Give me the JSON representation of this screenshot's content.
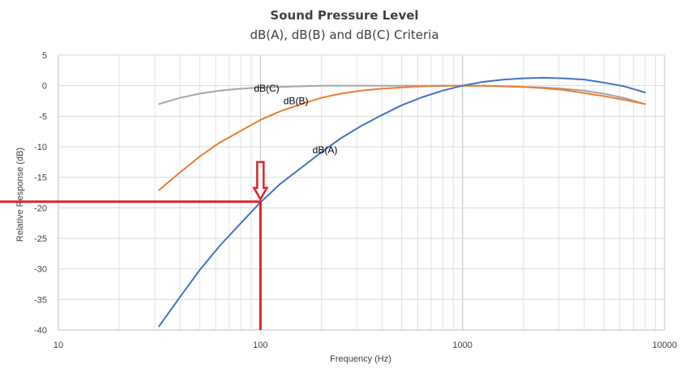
{
  "chart_data": {
    "type": "line",
    "title": "Sound Pressure Level",
    "subtitle": "dB(A), dB(B) and dB(C) Criteria",
    "xlabel": "Frequency (Hz)",
    "ylabel": "Relative Response (dB)",
    "xscale": "log",
    "xlim": [
      10,
      10000
    ],
    "ylim": [
      -40,
      5
    ],
    "xticks": [
      10,
      100,
      1000,
      10000
    ],
    "xtick_labels": [
      "10",
      "100",
      "1000",
      "10000"
    ],
    "yticks": [
      5,
      0,
      -5,
      -10,
      -15,
      -20,
      -25,
      -30,
      -35,
      -40
    ],
    "ytick_labels": [
      "5",
      "0",
      "-5",
      "-10",
      "-15",
      "-20",
      "-25",
      "-30",
      "-35",
      "-40"
    ],
    "grid": true,
    "series": [
      {
        "name": "dB(A)",
        "color": "#4472c4",
        "x": [
          31.5,
          40,
          50,
          63,
          80,
          100,
          125,
          160,
          200,
          250,
          315,
          400,
          500,
          630,
          800,
          1000,
          1250,
          1600,
          2000,
          2500,
          3150,
          4000,
          5000,
          6300,
          8000
        ],
        "y": [
          -39.4,
          -34.6,
          -30.2,
          -26.2,
          -22.5,
          -19.1,
          -16.1,
          -13.4,
          -10.9,
          -8.6,
          -6.6,
          -4.8,
          -3.2,
          -1.9,
          -0.8,
          0.0,
          0.6,
          1.0,
          1.2,
          1.3,
          1.2,
          1.0,
          0.5,
          -0.1,
          -1.1
        ]
      },
      {
        "name": "dB(B)",
        "color": "#ed7d31",
        "x": [
          31.5,
          40,
          50,
          63,
          80,
          100,
          125,
          160,
          200,
          250,
          315,
          400,
          500,
          630,
          800,
          1000,
          1250,
          1600,
          2000,
          2500,
          3150,
          4000,
          5000,
          6300,
          8000
        ],
        "y": [
          -17.1,
          -14.2,
          -11.6,
          -9.3,
          -7.4,
          -5.6,
          -4.2,
          -3.0,
          -2.0,
          -1.3,
          -0.8,
          -0.5,
          -0.3,
          -0.1,
          0.0,
          0.0,
          0.0,
          -0.1,
          -0.2,
          -0.4,
          -0.7,
          -1.2,
          -1.7,
          -2.3,
          -3.0
        ]
      },
      {
        "name": "dB(C)",
        "color": "#a5a5a5",
        "x": [
          31.5,
          40,
          50,
          63,
          80,
          100,
          125,
          160,
          200,
          250,
          315,
          400,
          500,
          630,
          800,
          1000,
          1250,
          1600,
          2000,
          2500,
          3150,
          4000,
          5000,
          6300,
          8000
        ],
        "y": [
          -3.0,
          -2.0,
          -1.3,
          -0.8,
          -0.5,
          -0.3,
          -0.2,
          -0.1,
          0.0,
          0.0,
          0.0,
          0.0,
          0.0,
          0.0,
          0.0,
          0.0,
          0.0,
          -0.1,
          -0.2,
          -0.3,
          -0.5,
          -0.8,
          -1.3,
          -2.0,
          -3.0
        ]
      }
    ],
    "annotations": [
      {
        "type": "label",
        "text": "dB(C)",
        "x": 100,
        "y": -0.3
      },
      {
        "type": "label",
        "text": "dB(B)",
        "x": 140,
        "y": -2.4
      },
      {
        "type": "label",
        "text": "dB(A)",
        "x": 195,
        "y": -10.4
      },
      {
        "type": "arrow",
        "direction": "down",
        "x": 100,
        "y_from": -12.5,
        "y_to": -18.6
      },
      {
        "type": "hline",
        "y": -19,
        "x_from": 10,
        "x_to": 100,
        "color": "#d9262a"
      },
      {
        "type": "vline",
        "x": 100,
        "y_from": -19,
        "y_to": -40,
        "color": "#d9262a"
      }
    ],
    "highlight_color": "#d9262a"
  }
}
